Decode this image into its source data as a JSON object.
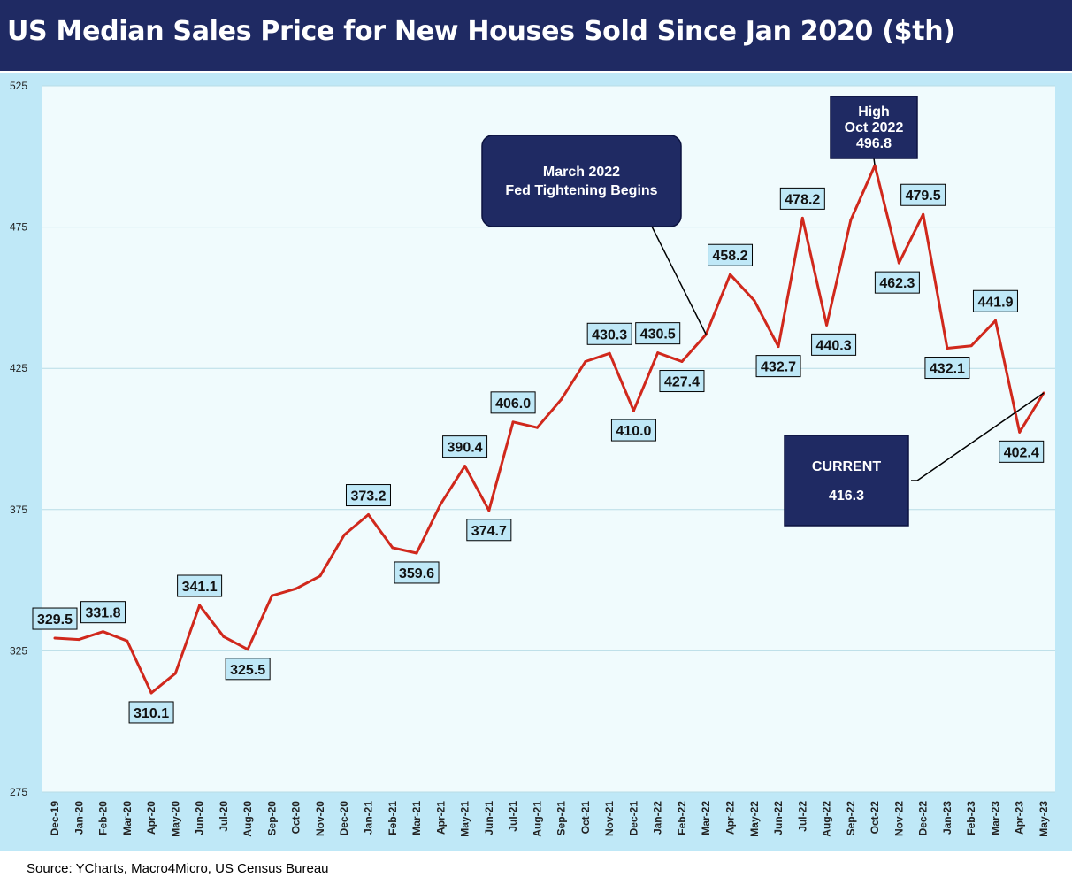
{
  "title": "US Median Sales Price for New Houses Sold Since Jan 2020 ($th)",
  "source": "Source: YCharts, Macro4Micro, US Census Bureau",
  "colors": {
    "title_bg": "#1f2a63",
    "chart_bg": "#bfe8f7",
    "plot_bg": "#f0fbfd",
    "line": "#d0281c",
    "label_bg": "#bfe8f7",
    "annotation_bg": "#1f2a63"
  },
  "chart_data": {
    "type": "line",
    "categories": [
      "Dec-19",
      "Jan-20",
      "Feb-20",
      "Mar-20",
      "Apr-20",
      "May-20",
      "Jun-20",
      "Jul-20",
      "Aug-20",
      "Sep-20",
      "Oct-20",
      "Nov-20",
      "Dec-20",
      "Jan-21",
      "Feb-21",
      "Mar-21",
      "Apr-21",
      "May-21",
      "Jun-21",
      "Jul-21",
      "Aug-21",
      "Sep-21",
      "Oct-21",
      "Nov-21",
      "Dec-21",
      "Jan-22",
      "Feb-22",
      "Mar-22",
      "Apr-22",
      "May-22",
      "Jun-22",
      "Jul-22",
      "Aug-22",
      "Sep-22",
      "Oct-22",
      "Nov-22",
      "Dec-22",
      "Jan-23",
      "Feb-23",
      "Mar-23",
      "Apr-23",
      "May-23"
    ],
    "series": [
      {
        "values": [
          329.5,
          329,
          331.8,
          328.5,
          310.1,
          317,
          341.1,
          330,
          325.5,
          344.5,
          347,
          351.5,
          366,
          373.2,
          361.5,
          359.6,
          377,
          390.4,
          374.7,
          406,
          404,
          414,
          427.4,
          430.3,
          410,
          430.5,
          427.4,
          437,
          458.2,
          449,
          432.7,
          478.2,
          440.3,
          477.5,
          496.8,
          462.3,
          479.5,
          432.1,
          433,
          441.9,
          402.4,
          416.3
        ]
      }
    ],
    "data_labels": [
      {
        "i": 0,
        "text": "329.5"
      },
      {
        "i": 2,
        "text": "331.8"
      },
      {
        "i": 4,
        "text": "310.1"
      },
      {
        "i": 6,
        "text": "341.1"
      },
      {
        "i": 8,
        "text": "325.5"
      },
      {
        "i": 13,
        "text": "373.2"
      },
      {
        "i": 15,
        "text": "359.6"
      },
      {
        "i": 17,
        "text": "390.4"
      },
      {
        "i": 18,
        "text": "374.7"
      },
      {
        "i": 19,
        "text": "406.0"
      },
      {
        "i": 23,
        "text": "430.3"
      },
      {
        "i": 24,
        "text": "410.0"
      },
      {
        "i": 25,
        "text": "430.5"
      },
      {
        "i": 26,
        "text": "427.4"
      },
      {
        "i": 28,
        "text": "458.2"
      },
      {
        "i": 30,
        "text": "432.7"
      },
      {
        "i": 31,
        "text": "478.2"
      },
      {
        "i": 32,
        "text": "440.3"
      },
      {
        "i": 35,
        "text": "462.3"
      },
      {
        "i": 36,
        "text": "479.5"
      },
      {
        "i": 37,
        "text": "432.1"
      },
      {
        "i": 39,
        "text": "441.9"
      },
      {
        "i": 40,
        "text": "402.4"
      }
    ],
    "annotations": [
      {
        "text": [
          "March 2022",
          "Fed Tightening Begins"
        ],
        "target_index": 27
      },
      {
        "text": [
          "High",
          "Oct 2022",
          "496.8"
        ],
        "target_index": 34
      },
      {
        "text": [
          "CURRENT",
          "416.3"
        ],
        "target_index": 41
      }
    ],
    "ylim": [
      275,
      525
    ],
    "yticks": [
      275,
      325,
      375,
      425,
      475,
      525
    ],
    "grid": true,
    "xlabel": "",
    "ylabel": ""
  }
}
